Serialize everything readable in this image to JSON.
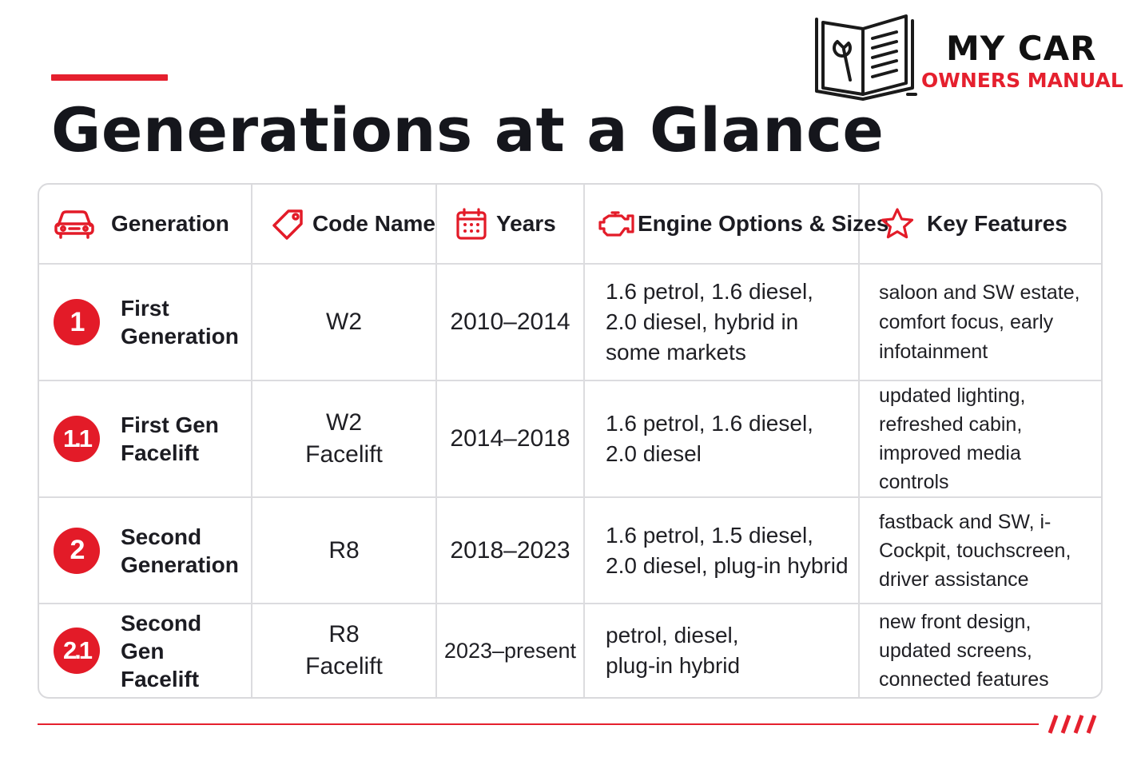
{
  "title": "Generations at a Glance",
  "brand": {
    "line1": "MY CAR",
    "line2": "OWNERS MANUAL",
    "accent_color": "#e5202e"
  },
  "table": {
    "headers": [
      {
        "label": "Generation",
        "icon": "car-icon"
      },
      {
        "label": "Code Name",
        "icon": "tag-icon"
      },
      {
        "label": "Years",
        "icon": "calendar-icon"
      },
      {
        "label": "Engine Options & Sizes",
        "icon": "engine-icon"
      },
      {
        "label": "Key Features",
        "icon": "star-icon"
      }
    ],
    "rows": [
      {
        "badge": "1",
        "generation": "First Generation",
        "code_name": "W2",
        "years": "2010–2014",
        "engines": "1.6 petrol, 1.6 diesel, 2.0 diesel, hybrid in some markets",
        "features": "saloon and SW estate, comfort focus, early infotainment"
      },
      {
        "badge": "1.1",
        "generation": "First Gen Facelift",
        "code_name": "W2 Facelift",
        "years": "2014–2018",
        "engines": "1.6 petrol, 1.6 diesel, 2.0 diesel",
        "features": "updated lighting, refreshed cabin, improved media controls"
      },
      {
        "badge": "2",
        "generation": "Second Generation",
        "code_name": "R8",
        "years": "2018–2023",
        "engines": "1.6 petrol, 1.5 diesel, 2.0 diesel, plug-in hybrid",
        "features": "fastback and SW, i-Cockpit, touchscreen, driver assistance"
      },
      {
        "badge": "2.1",
        "generation": "Second Gen Facelift",
        "code_name": "R8 Facelift",
        "years": "2023–present",
        "engines": "petrol, diesel, plug-in hybrid",
        "features": "new front design, updated screens, connected features"
      }
    ]
  }
}
